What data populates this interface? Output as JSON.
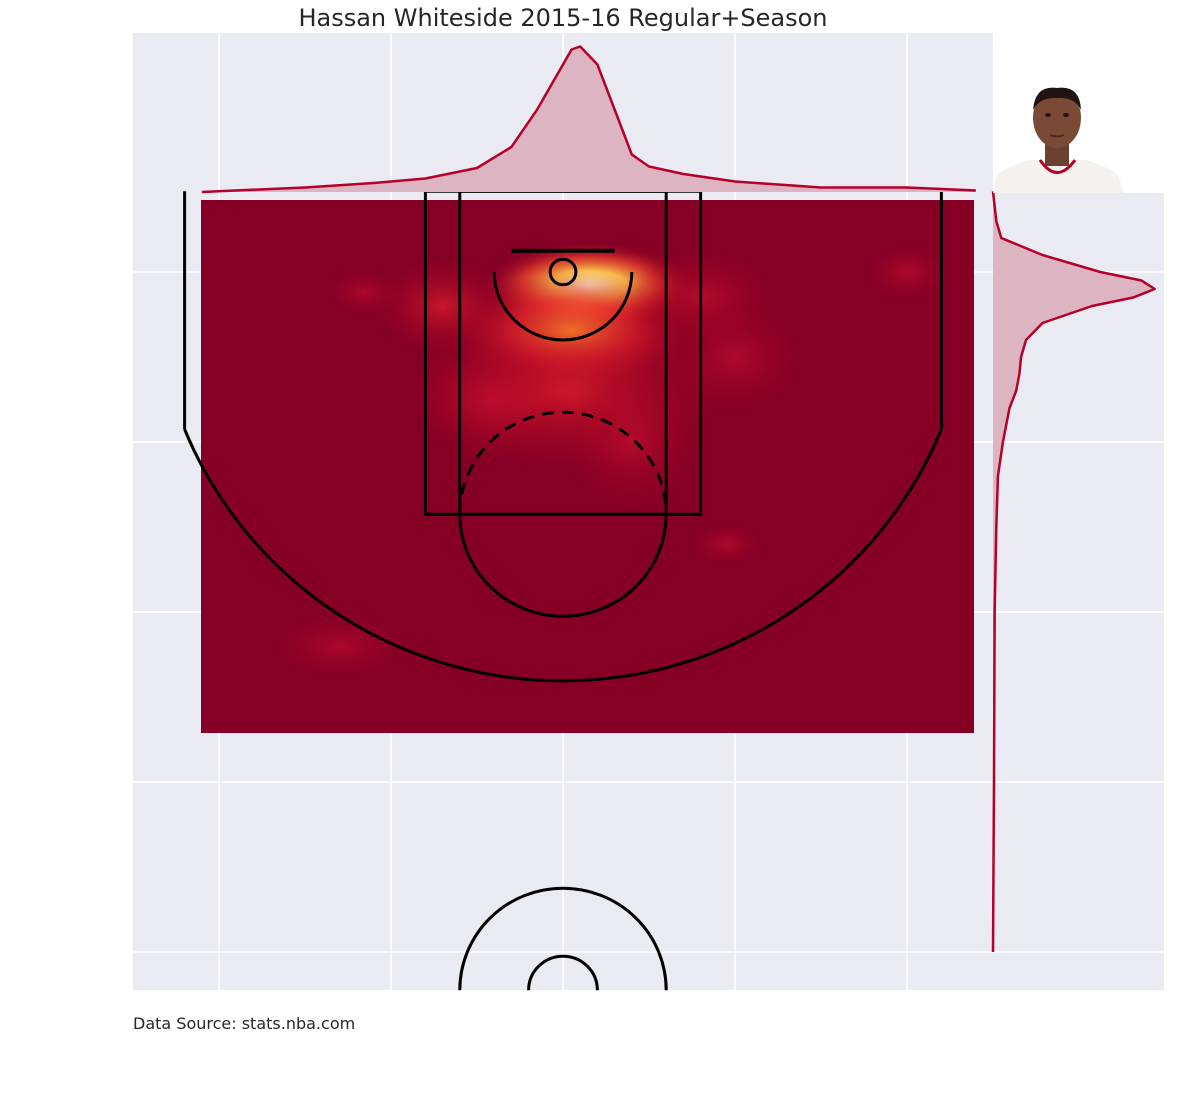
{
  "title": "Hassan Whiteside 2015-16 Regular+Season",
  "source": "Data Source: stats.nba.com",
  "colors": {
    "axes_bg": "#eaeaf2",
    "grid": "#ffffff",
    "heat_low": "#860026",
    "heat_high": "#ffffd8",
    "kde_line": "#b5002b",
    "kde_fill": "#ddb4c1",
    "court_lines": "#000000"
  },
  "chart_data": {
    "type": "heatmap",
    "kind": "joint shot-location density plot (KDE) over a half-court diagram",
    "title": "Hassan Whiteside 2015-16 Regular+Season",
    "grid": true,
    "xlim": [
      -250,
      250
    ],
    "ylim": [
      422.5,
      -47.5
    ],
    "hotspots": [
      {
        "x": 15,
        "y": 8,
        "intensity": 1.0,
        "sx": 38,
        "sy": 16
      },
      {
        "x": 5,
        "y": 35,
        "intensity": 0.5,
        "sx": 45,
        "sy": 22
      },
      {
        "x": 0,
        "y": 70,
        "intensity": 0.3,
        "sx": 60,
        "sy": 30
      },
      {
        "x": -70,
        "y": 20,
        "intensity": 0.22,
        "sx": 25,
        "sy": 18
      },
      {
        "x": 80,
        "y": 15,
        "intensity": 0.18,
        "sx": 28,
        "sy": 18
      },
      {
        "x": 100,
        "y": 50,
        "intensity": 0.12,
        "sx": 25,
        "sy": 20
      },
      {
        "x": -40,
        "y": 75,
        "intensity": 0.15,
        "sx": 30,
        "sy": 20
      },
      {
        "x": 40,
        "y": 100,
        "intensity": 0.14,
        "sx": 25,
        "sy": 25
      },
      {
        "x": 200,
        "y": 0,
        "intensity": 0.1,
        "sx": 15,
        "sy": 10
      },
      {
        "x": -115,
        "y": 12,
        "intensity": 0.08,
        "sx": 14,
        "sy": 8
      },
      {
        "x": 95,
        "y": 160,
        "intensity": 0.07,
        "sx": 14,
        "sy": 8
      },
      {
        "x": -130,
        "y": 220,
        "intensity": 0.05,
        "sx": 25,
        "sy": 12
      }
    ],
    "marginal_x": {
      "x": [
        -210,
        -150,
        -110,
        -80,
        -50,
        -30,
        -15,
        0,
        5,
        10,
        20,
        30,
        40,
        50,
        70,
        100,
        150,
        200,
        240
      ],
      "density": [
        0.0,
        0.03,
        0.06,
        0.09,
        0.16,
        0.3,
        0.55,
        0.85,
        0.95,
        0.97,
        0.85,
        0.55,
        0.25,
        0.17,
        0.12,
        0.07,
        0.03,
        0.03,
        0.01
      ]
    },
    "marginal_y": {
      "y": [
        -47.5,
        -30,
        -20,
        -10,
        0,
        5,
        10,
        15,
        20,
        30,
        40,
        50,
        60,
        70,
        80,
        100,
        120,
        150,
        200,
        250,
        300,
        350,
        400
      ],
      "density": [
        0.0,
        0.02,
        0.05,
        0.3,
        0.65,
        0.9,
        0.98,
        0.85,
        0.6,
        0.3,
        0.2,
        0.17,
        0.16,
        0.14,
        0.1,
        0.06,
        0.03,
        0.02,
        0.01,
        0.008,
        0.006,
        0.003,
        0.0
      ]
    }
  }
}
